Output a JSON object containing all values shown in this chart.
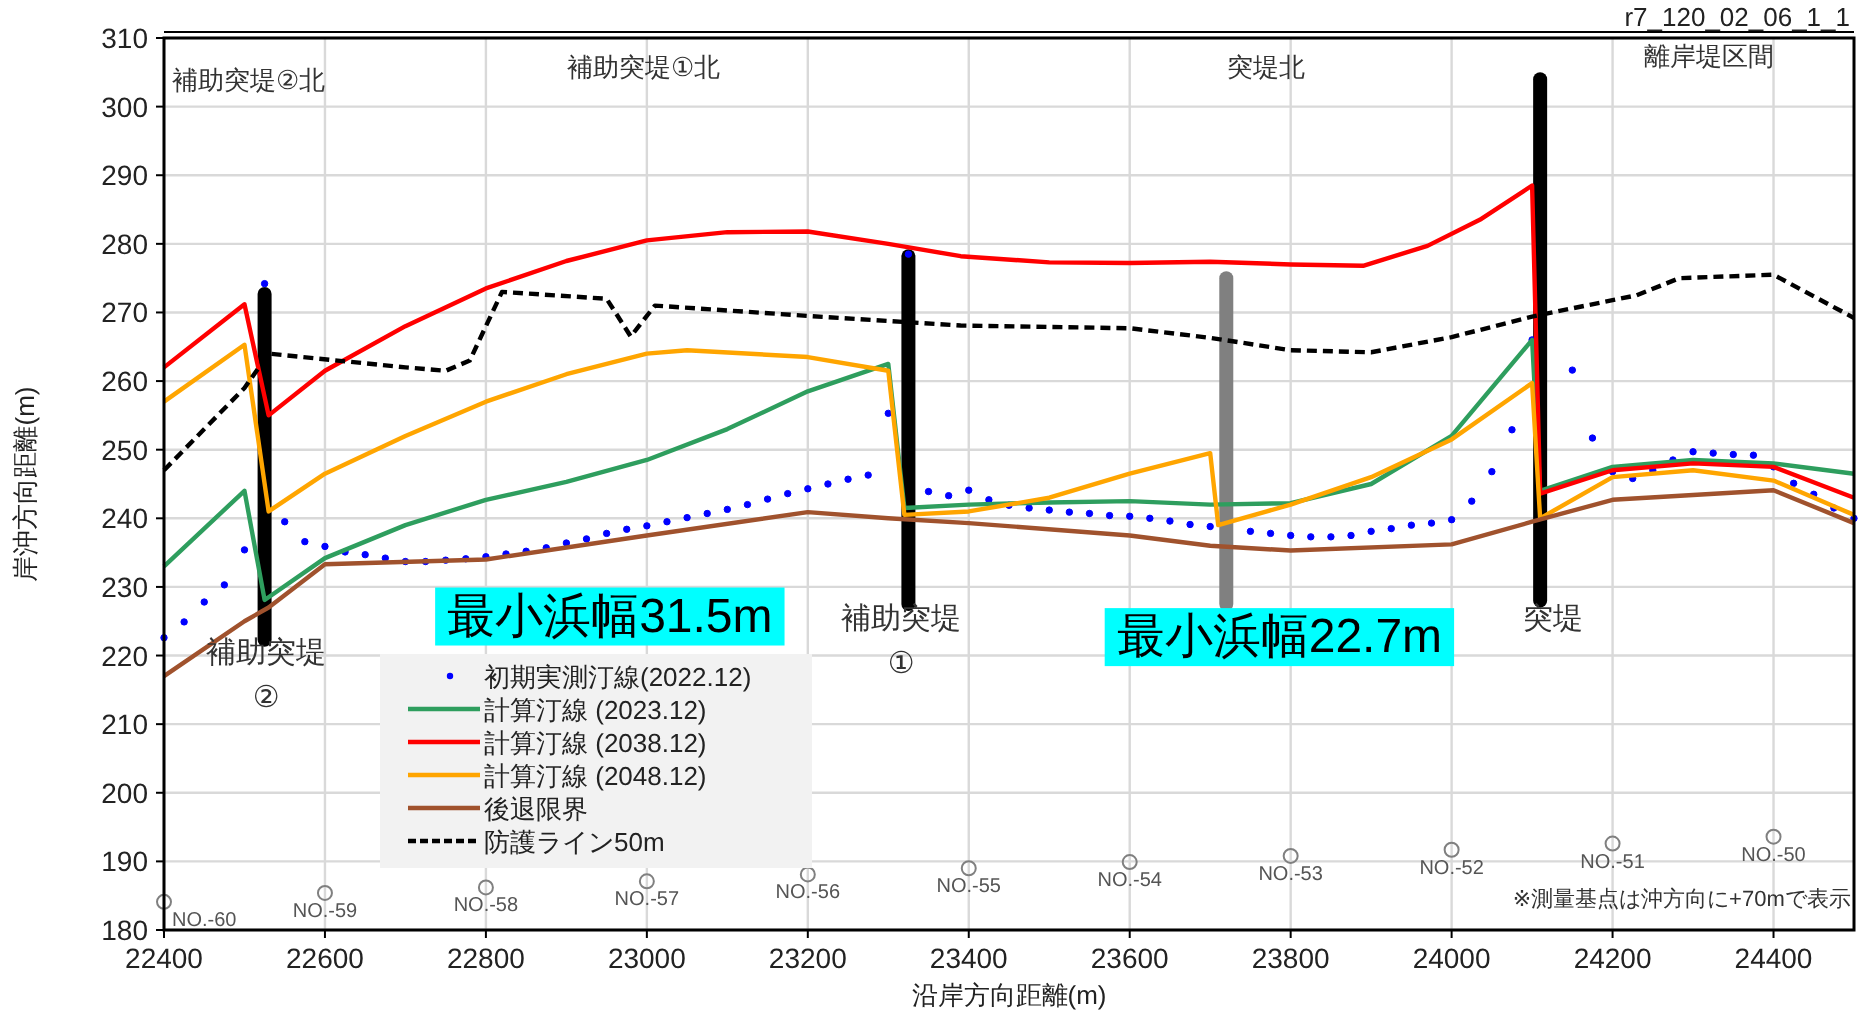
{
  "chart_data": {
    "type": "line",
    "title": "r7_120_02_06_1_1",
    "xlabel": "沿岸方向距離(m)",
    "ylabel": "岸沖方向距離(m)",
    "xlim": [
      22400,
      24500
    ],
    "ylim": [
      180,
      310
    ],
    "xticks": [
      22400,
      22600,
      22800,
      23000,
      23200,
      23400,
      23600,
      23800,
      24000,
      24200,
      24400
    ],
    "yticks": [
      180,
      190,
      200,
      210,
      220,
      230,
      240,
      250,
      260,
      270,
      280,
      290,
      300,
      310
    ],
    "grid": true,
    "legend": "bottom left",
    "annotations": [
      "補助突堤②北",
      "補助突堤①北",
      "突堤北",
      "離岸堤区間",
      "補助突堤\n②",
      "補助突堤\n①",
      "突堤",
      "最小浜幅31.5m",
      "最小浜幅22.7m",
      "※測量基点は沖方向に+70mで表示",
      {
        "text": "NO.-60",
        "x": 22400,
        "y": 184.1
      },
      {
        "text": "NO.-59",
        "x": 22600,
        "y": 185.4
      },
      {
        "text": "NO.-58",
        "x": 22800,
        "y": 186.2
      },
      {
        "text": "NO.-57",
        "x": 23000,
        "y": 187.1
      },
      {
        "text": "NO.-56",
        "x": 23200,
        "y": 188.1
      },
      {
        "text": "NO.-55",
        "x": 23400,
        "y": 189.0
      },
      {
        "text": "NO.-54",
        "x": 23600,
        "y": 189.9
      },
      {
        "text": "NO.-53",
        "x": 23800,
        "y": 190.8
      },
      {
        "text": "NO.-52",
        "x": 24000,
        "y": 191.7
      },
      {
        "text": "NO.-51",
        "x": 24200,
        "y": 192.6
      },
      {
        "text": "NO.-50",
        "x": 24400,
        "y": 193.6
      }
    ],
    "series": [
      {
        "name": "初期実測汀線(2022.12)",
        "type": "scatter",
        "marker": "circle",
        "color": "#0000ff",
        "x": [
          22400,
          22425,
          22450,
          22475,
          22500,
          22525,
          22550,
          22575,
          22600,
          22625,
          22650,
          22675,
          22700,
          22725,
          22750,
          22775,
          22800,
          22825,
          22850,
          22875,
          22900,
          22925,
          22950,
          22975,
          23000,
          23025,
          23050,
          23075,
          23100,
          23125,
          23150,
          23175,
          23200,
          23225,
          23250,
          23275,
          23300,
          23325,
          23350,
          23375,
          23400,
          23425,
          23450,
          23475,
          23500,
          23525,
          23550,
          23575,
          23600,
          23625,
          23650,
          23675,
          23700,
          23750,
          23775,
          23800,
          23825,
          23850,
          23875,
          23900,
          23925,
          23950,
          23975,
          24000,
          24025,
          24050,
          24075,
          24100,
          24150,
          24175,
          24200,
          24225,
          24250,
          24275,
          24300,
          24325,
          24350,
          24375,
          24400,
          24425,
          24450,
          24475,
          24500
        ],
        "values": [
          222.6,
          224.9,
          227.8,
          230.3,
          235.4,
          274.2,
          239.5,
          236.6,
          235.9,
          235.1,
          234.7,
          234.2,
          233.7,
          233.7,
          233.9,
          234.1,
          234.4,
          234.8,
          235.2,
          235.7,
          236.4,
          237.0,
          237.8,
          238.4,
          238.9,
          239.5,
          240.1,
          240.7,
          241.3,
          242.0,
          242.8,
          243.6,
          244.3,
          245.0,
          245.7,
          246.3,
          255.3,
          278.5,
          243.9,
          243.3,
          244.1,
          242.7,
          241.9,
          241.5,
          241.2,
          240.9,
          240.7,
          240.4,
          240.3,
          240.0,
          239.6,
          239.1,
          238.8,
          238.1,
          237.8,
          237.5,
          237.3,
          237.3,
          237.5,
          238.1,
          238.5,
          239.0,
          239.3,
          239.8,
          242.5,
          246.8,
          252.9,
          266.0,
          261.6,
          251.7,
          246.8,
          245.8,
          247.0,
          248.5,
          249.7,
          249.5,
          249.3,
          249.2,
          247.5,
          245.1,
          243.5,
          241.5,
          240.0
        ]
      },
      {
        "name": "計算汀線 (2023.12)",
        "marker": "none",
        "line_style": "solid",
        "color": "#2e9e5e",
        "x": [
          22400,
          22500,
          22525,
          22600,
          22700,
          22800,
          22900,
          23000,
          23100,
          23200,
          23300,
          23320,
          23400,
          23500,
          23600,
          23700,
          23800,
          23900,
          24000,
          24100,
          24110,
          24200,
          24300,
          24400,
          24500
        ],
        "values": [
          233,
          244,
          228.1,
          234.2,
          239,
          242.7,
          245.3,
          248.5,
          253,
          258.5,
          262.5,
          241.5,
          242,
          242.3,
          242.5,
          242,
          242.2,
          245,
          252,
          266,
          244,
          247.5,
          248.5,
          248,
          246.5
        ]
      },
      {
        "name": "計算汀線 (2038.12)",
        "marker": "none",
        "line_style": "solid",
        "color": "#ff0000",
        "x": [
          22400,
          22500,
          22530,
          22600,
          22700,
          22800,
          22900,
          23000,
          23100,
          23200,
          23300,
          23390,
          23500,
          23600,
          23700,
          23800,
          23890,
          23970,
          24035,
          24100,
          24110,
          24200,
          24300,
          24400,
          24500
        ],
        "values": [
          262,
          271.2,
          255,
          261.5,
          268,
          273.5,
          277.5,
          280.5,
          281.7,
          281.8,
          280,
          278.2,
          277.3,
          277.2,
          277.4,
          277,
          276.8,
          279.7,
          283.5,
          288.5,
          243.6,
          247,
          248,
          247.5,
          243
        ]
      },
      {
        "name": "計算汀線 (2048.12)",
        "marker": "none",
        "line_style": "solid",
        "color": "#ffa500",
        "x": [
          22400,
          22500,
          22530,
          22600,
          22700,
          22800,
          22900,
          23000,
          23050,
          23200,
          23300,
          23320,
          23400,
          23500,
          23600,
          23700,
          23710,
          23800,
          23900,
          24000,
          24100,
          24110,
          24200,
          24300,
          24400,
          24500
        ],
        "values": [
          257,
          265.3,
          241,
          246.5,
          252,
          257,
          261,
          264,
          264.5,
          263.5,
          261.5,
          240.5,
          241,
          243,
          246.5,
          249.5,
          239,
          242,
          246,
          251.5,
          259.7,
          240,
          246,
          247,
          245.5,
          240.5
        ]
      },
      {
        "name": "後退限界",
        "marker": "none",
        "line_style": "solid",
        "color": "#a0522d",
        "x": [
          22400,
          22500,
          22530,
          22600,
          22800,
          23000,
          23200,
          23300,
          23400,
          23600,
          23700,
          23800,
          24000,
          24100,
          24200,
          24400,
          24500
        ],
        "values": [
          217,
          225,
          227,
          233.3,
          234,
          237.5,
          240.9,
          240,
          239.3,
          237.5,
          236,
          235.3,
          236.2,
          239.5,
          242.7,
          244.1,
          239.3
        ]
      },
      {
        "name": "防護ライン50m",
        "marker": "none",
        "line_style": "dashed",
        "color": "#000000",
        "x": [
          22400,
          22500,
          22530,
          22700,
          22750,
          22780,
          22820,
          22950,
          22980,
          23010,
          23200,
          23390,
          23600,
          23700,
          23800,
          23900,
          24000,
          24100,
          24200,
          24230,
          24283,
          24400,
          24500
        ],
        "values": [
          247,
          259,
          264,
          262,
          261.5,
          263,
          273,
          272,
          266.5,
          271,
          269.5,
          268.1,
          267.7,
          266.3,
          264.5,
          264.2,
          266.4,
          269.4,
          271.8,
          272.5,
          275,
          275.5,
          269.2
        ]
      },
      {
        "type": "scatter",
        "marker": "circle",
        "color": "#808080",
        "x": [
          22400,
          22600,
          22800,
          23000,
          23200,
          23400,
          23600,
          23800,
          24000,
          24200,
          24400
        ],
        "values": [
          184.1,
          185.4,
          186.2,
          187.1,
          188.1,
          189.0,
          189.9,
          190.8,
          191.7,
          192.6,
          193.6
        ]
      }
    ]
  }
}
